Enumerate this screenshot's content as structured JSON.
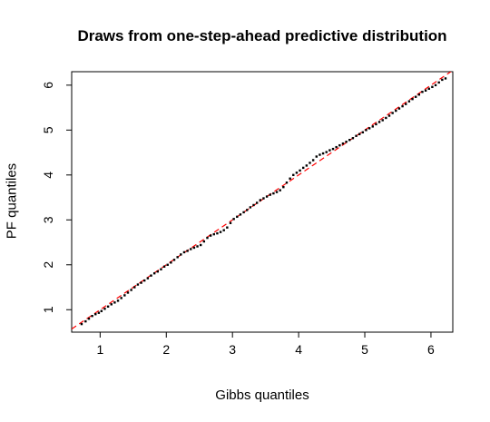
{
  "chart_data": {
    "type": "scatter",
    "title": "Draws from one-step-ahead predictive distribution",
    "xlabel": "Gibbs quantiles",
    "ylabel": "PF quantiles",
    "xlim": [
      0.57,
      6.33
    ],
    "ylim": [
      0.5,
      6.3
    ],
    "x_ticks": [
      1,
      2,
      3,
      4,
      5,
      6
    ],
    "y_ticks": [
      1,
      2,
      3,
      4,
      5,
      6
    ],
    "reference_line": {
      "intercept": 0,
      "slope": 1,
      "color": "#ff0000",
      "style": "dashed"
    },
    "grid": false,
    "point_color": "#000000",
    "points": [
      [
        0.72,
        0.68
      ],
      [
        0.78,
        0.74
      ],
      [
        0.83,
        0.8
      ],
      [
        0.88,
        0.86
      ],
      [
        0.93,
        0.9
      ],
      [
        0.98,
        0.93
      ],
      [
        1.02,
        0.97
      ],
      [
        1.07,
        1.02
      ],
      [
        1.12,
        1.07
      ],
      [
        1.17,
        1.12
      ],
      [
        1.22,
        1.16
      ],
      [
        1.27,
        1.2
      ],
      [
        1.32,
        1.26
      ],
      [
        1.37,
        1.32
      ],
      [
        1.42,
        1.38
      ],
      [
        1.47,
        1.44
      ],
      [
        1.52,
        1.5
      ],
      [
        1.57,
        1.56
      ],
      [
        1.62,
        1.6
      ],
      [
        1.67,
        1.65
      ],
      [
        1.72,
        1.7
      ],
      [
        1.77,
        1.76
      ],
      [
        1.82,
        1.81
      ],
      [
        1.87,
        1.85
      ],
      [
        1.92,
        1.9
      ],
      [
        1.97,
        1.96
      ],
      [
        2.02,
        2.0
      ],
      [
        2.07,
        2.05
      ],
      [
        2.12,
        2.11
      ],
      [
        2.17,
        2.17
      ],
      [
        2.22,
        2.23
      ],
      [
        2.27,
        2.28
      ],
      [
        2.32,
        2.31
      ],
      [
        2.37,
        2.35
      ],
      [
        2.42,
        2.38
      ],
      [
        2.47,
        2.41
      ],
      [
        2.52,
        2.44
      ],
      [
        2.57,
        2.52
      ],
      [
        2.62,
        2.6
      ],
      [
        2.67,
        2.65
      ],
      [
        2.72,
        2.68
      ],
      [
        2.77,
        2.7
      ],
      [
        2.82,
        2.73
      ],
      [
        2.87,
        2.77
      ],
      [
        2.92,
        2.83
      ],
      [
        2.97,
        2.93
      ],
      [
        3.02,
        3.02
      ],
      [
        3.07,
        3.07
      ],
      [
        3.12,
        3.12
      ],
      [
        3.17,
        3.17
      ],
      [
        3.22,
        3.22
      ],
      [
        3.27,
        3.28
      ],
      [
        3.32,
        3.33
      ],
      [
        3.37,
        3.38
      ],
      [
        3.42,
        3.44
      ],
      [
        3.47,
        3.48
      ],
      [
        3.52,
        3.52
      ],
      [
        3.57,
        3.56
      ],
      [
        3.62,
        3.59
      ],
      [
        3.67,
        3.62
      ],
      [
        3.72,
        3.66
      ],
      [
        3.77,
        3.73
      ],
      [
        3.82,
        3.83
      ],
      [
        3.87,
        3.92
      ],
      [
        3.92,
        4.0
      ],
      [
        3.97,
        4.05
      ],
      [
        4.02,
        4.1
      ],
      [
        4.07,
        4.16
      ],
      [
        4.12,
        4.21
      ],
      [
        4.17,
        4.27
      ],
      [
        4.22,
        4.33
      ],
      [
        4.27,
        4.41
      ],
      [
        4.32,
        4.45
      ],
      [
        4.37,
        4.48
      ],
      [
        4.42,
        4.51
      ],
      [
        4.47,
        4.55
      ],
      [
        4.52,
        4.58
      ],
      [
        4.57,
        4.62
      ],
      [
        4.62,
        4.66
      ],
      [
        4.67,
        4.7
      ],
      [
        4.72,
        4.74
      ],
      [
        4.77,
        4.78
      ],
      [
        4.82,
        4.82
      ],
      [
        4.87,
        4.87
      ],
      [
        4.92,
        4.91
      ],
      [
        4.97,
        4.95
      ],
      [
        5.02,
        5.0
      ],
      [
        5.07,
        5.04
      ],
      [
        5.12,
        5.08
      ],
      [
        5.17,
        5.13
      ],
      [
        5.22,
        5.18
      ],
      [
        5.27,
        5.22
      ],
      [
        5.32,
        5.27
      ],
      [
        5.37,
        5.32
      ],
      [
        5.42,
        5.38
      ],
      [
        5.47,
        5.43
      ],
      [
        5.52,
        5.48
      ],
      [
        5.57,
        5.53
      ],
      [
        5.62,
        5.58
      ],
      [
        5.67,
        5.64
      ],
      [
        5.72,
        5.69
      ],
      [
        5.77,
        5.74
      ],
      [
        5.82,
        5.79
      ],
      [
        5.87,
        5.85
      ],
      [
        5.92,
        5.88
      ],
      [
        5.97,
        5.92
      ],
      [
        6.02,
        5.96
      ],
      [
        6.07,
        6.0
      ],
      [
        6.12,
        6.06
      ],
      [
        6.17,
        6.12
      ],
      [
        6.22,
        6.15
      ]
    ]
  }
}
